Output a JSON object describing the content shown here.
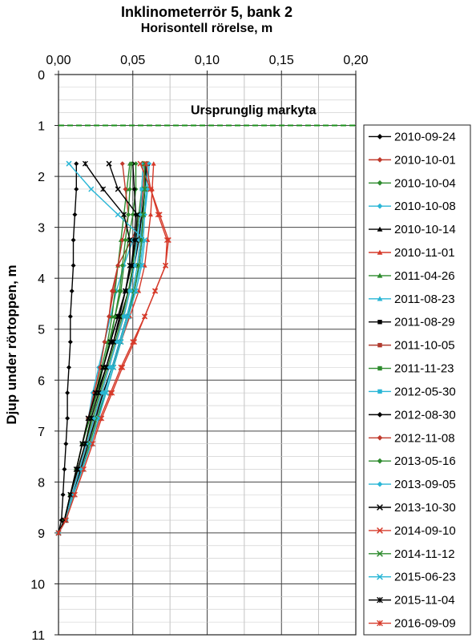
{
  "chart_data": {
    "type": "line",
    "title": "Inklinometerrör 5, bank 2",
    "xlabel": "Horisontell rörelse, m",
    "ylabel": "Djup under rörtoppen, m",
    "xlim": [
      0,
      0.2
    ],
    "ylim": [
      0,
      11
    ],
    "x_ticks": [
      "0,00",
      "0,05",
      "0,10",
      "0,15",
      "0,20"
    ],
    "y_ticks": [
      "0",
      "1",
      "2",
      "3",
      "4",
      "5",
      "6",
      "7",
      "8",
      "9",
      "10",
      "11"
    ],
    "x_axis_position": "top",
    "y_axis_reversed": true,
    "grid": true,
    "legend_position": "right",
    "reference_line": {
      "label": "Ursprunglig markyta",
      "depth": 1.0,
      "color": "#1a8f1a"
    },
    "depths": [
      9.0,
      8.75,
      8.25,
      7.75,
      7.25,
      6.75,
      6.25,
      5.75,
      5.25,
      4.75,
      4.25,
      3.75,
      3.25,
      2.75,
      2.25,
      1.75
    ],
    "series": [
      {
        "name": "2010-09-24",
        "color": "#000000",
        "marker": "diamond",
        "x": [
          0.0,
          0.002,
          0.003,
          0.004,
          0.005,
          0.006,
          0.006,
          0.007,
          0.008,
          0.008,
          0.009,
          0.01,
          0.01,
          0.011,
          0.012,
          0.012
        ]
      },
      {
        "name": "2010-10-01",
        "color": "#c0392b",
        "marker": "diamond",
        "x": [
          0.0,
          0.004,
          0.008,
          0.012,
          0.016,
          0.02,
          0.024,
          0.028,
          0.031,
          0.034,
          0.036,
          0.04,
          0.049,
          0.057,
          0.058,
          0.058
        ]
      },
      {
        "name": "2010-10-04",
        "color": "#2e8b2e",
        "marker": "diamond",
        "x": [
          0.0,
          0.004,
          0.008,
          0.012,
          0.016,
          0.02,
          0.025,
          0.03,
          0.035,
          0.038,
          0.042,
          0.044,
          0.047,
          0.05,
          0.052,
          0.052
        ]
      },
      {
        "name": "2010-10-08",
        "color": "#29b6d6",
        "marker": "diamond",
        "x": [
          0.0,
          0.004,
          0.008,
          0.012,
          0.016,
          0.02,
          0.023,
          0.027,
          0.031,
          0.035,
          0.039,
          0.044,
          0.05,
          0.058,
          0.06,
          0.061
        ]
      },
      {
        "name": "2010-10-14",
        "color": "#000000",
        "marker": "triangle",
        "x": [
          0.0,
          0.004,
          0.008,
          0.012,
          0.016,
          0.021,
          0.026,
          0.032,
          0.037,
          0.042,
          0.047,
          0.051,
          0.054,
          0.056,
          0.058,
          0.06
        ]
      },
      {
        "name": "2010-11-01",
        "color": "#d63a2a",
        "marker": "triangle",
        "x": [
          0.0,
          0.004,
          0.009,
          0.014,
          0.019,
          0.024,
          0.03,
          0.036,
          0.042,
          0.048,
          0.054,
          0.058,
          0.06,
          0.062,
          0.063,
          0.064
        ]
      },
      {
        "name": "2011-04-26",
        "color": "#2e8b2e",
        "marker": "triangle",
        "x": [
          0.0,
          0.004,
          0.008,
          0.012,
          0.016,
          0.02,
          0.025,
          0.029,
          0.033,
          0.036,
          0.038,
          0.04,
          0.042,
          0.044,
          0.046,
          0.048
        ]
      },
      {
        "name": "2011-08-23",
        "color": "#29b6d6",
        "marker": "triangle",
        "x": [
          0.0,
          0.005,
          0.01,
          0.015,
          0.02,
          0.025,
          0.03,
          0.036,
          0.041,
          0.046,
          0.05,
          0.053,
          0.055,
          0.057,
          0.058,
          0.059
        ]
      },
      {
        "name": "2011-08-29",
        "color": "#000000",
        "marker": "square",
        "x": [
          0.0,
          0.005,
          0.01,
          0.015,
          0.02,
          0.025,
          0.03,
          0.036,
          0.041,
          0.046,
          0.051,
          0.054,
          0.056,
          0.057,
          0.058,
          0.059
        ]
      },
      {
        "name": "2011-10-05",
        "color": "#b03a2e",
        "marker": "square",
        "x": [
          0.0,
          0.004,
          0.009,
          0.014,
          0.019,
          0.024,
          0.029,
          0.034,
          0.039,
          0.044,
          0.048,
          0.051,
          0.053,
          0.055,
          0.057,
          0.058
        ]
      },
      {
        "name": "2011-11-23",
        "color": "#2e8b2e",
        "marker": "square",
        "x": [
          0.0,
          0.004,
          0.008,
          0.013,
          0.018,
          0.023,
          0.028,
          0.033,
          0.038,
          0.043,
          0.047,
          0.05,
          0.052,
          0.054,
          0.056,
          0.057
        ]
      },
      {
        "name": "2012-05-30",
        "color": "#29b6d6",
        "marker": "square",
        "x": [
          0.0,
          0.004,
          0.009,
          0.014,
          0.019,
          0.024,
          0.029,
          0.034,
          0.039,
          0.044,
          0.048,
          0.051,
          0.053,
          0.055,
          0.056,
          0.057
        ]
      },
      {
        "name": "2012-08-30",
        "color": "#000000",
        "marker": "diamond",
        "x": [
          0.0,
          0.004,
          0.008,
          0.012,
          0.016,
          0.02,
          0.025,
          0.03,
          0.035,
          0.04,
          0.045,
          0.049,
          0.051,
          0.052,
          0.051,
          0.05
        ]
      },
      {
        "name": "2012-11-08",
        "color": "#c0392b",
        "marker": "diamond",
        "x": [
          0.0,
          0.004,
          0.008,
          0.012,
          0.016,
          0.02,
          0.024,
          0.028,
          0.031,
          0.034,
          0.037,
          0.04,
          0.043,
          0.047,
          0.045,
          0.043
        ]
      },
      {
        "name": "2013-05-16",
        "color": "#2e8b2e",
        "marker": "diamond",
        "x": [
          0.0,
          0.004,
          0.008,
          0.012,
          0.016,
          0.021,
          0.026,
          0.03,
          0.034,
          0.038,
          0.041,
          0.043,
          0.045,
          0.047,
          0.048,
          0.049
        ]
      },
      {
        "name": "2013-09-05",
        "color": "#29b6d6",
        "marker": "diamond",
        "x": [
          0.0,
          0.005,
          0.01,
          0.016,
          0.021,
          0.026,
          0.031,
          0.036,
          0.041,
          0.046,
          0.051,
          0.055,
          0.057,
          0.058,
          0.059,
          0.06
        ]
      },
      {
        "name": "2013-10-30",
        "color": "#000000",
        "marker": "x",
        "x": [
          0.0,
          0.004,
          0.008,
          0.012,
          0.016,
          0.02,
          0.025,
          0.03,
          0.035,
          0.04,
          0.045,
          0.049,
          0.052,
          0.053,
          0.04,
          0.034
        ]
      },
      {
        "name": "2014-09-10",
        "color": "#d63a2a",
        "marker": "x",
        "x": [
          0.0,
          0.005,
          0.01,
          0.016,
          0.022,
          0.028,
          0.035,
          0.042,
          0.05,
          0.058,
          0.065,
          0.072,
          0.074,
          0.068,
          0.062,
          0.055
        ]
      },
      {
        "name": "2014-11-12",
        "color": "#2e8b2e",
        "marker": "x",
        "x": [
          0.0,
          0.005,
          0.01,
          0.016,
          0.021,
          0.026,
          0.032,
          0.037,
          0.042,
          0.047,
          0.051,
          0.054,
          0.056,
          0.057,
          0.058,
          0.058
        ]
      },
      {
        "name": "2015-06-23",
        "color": "#29b6d6",
        "marker": "x",
        "x": [
          0.0,
          0.005,
          0.01,
          0.016,
          0.022,
          0.027,
          0.032,
          0.037,
          0.042,
          0.047,
          0.052,
          0.056,
          0.058,
          0.04,
          0.022,
          0.007
        ]
      },
      {
        "name": "2015-11-04",
        "color": "#000000",
        "marker": "star",
        "x": [
          0.0,
          0.004,
          0.008,
          0.013,
          0.018,
          0.022,
          0.027,
          0.032,
          0.037,
          0.041,
          0.045,
          0.048,
          0.048,
          0.044,
          0.03,
          0.018
        ]
      },
      {
        "name": "2016-09-09",
        "color": "#d63a2a",
        "marker": "star",
        "x": [
          0.0,
          0.005,
          0.011,
          0.017,
          0.023,
          0.029,
          0.036,
          0.043,
          0.051,
          0.058,
          0.065,
          0.072,
          0.073,
          0.067,
          0.062,
          0.059
        ]
      }
    ]
  }
}
